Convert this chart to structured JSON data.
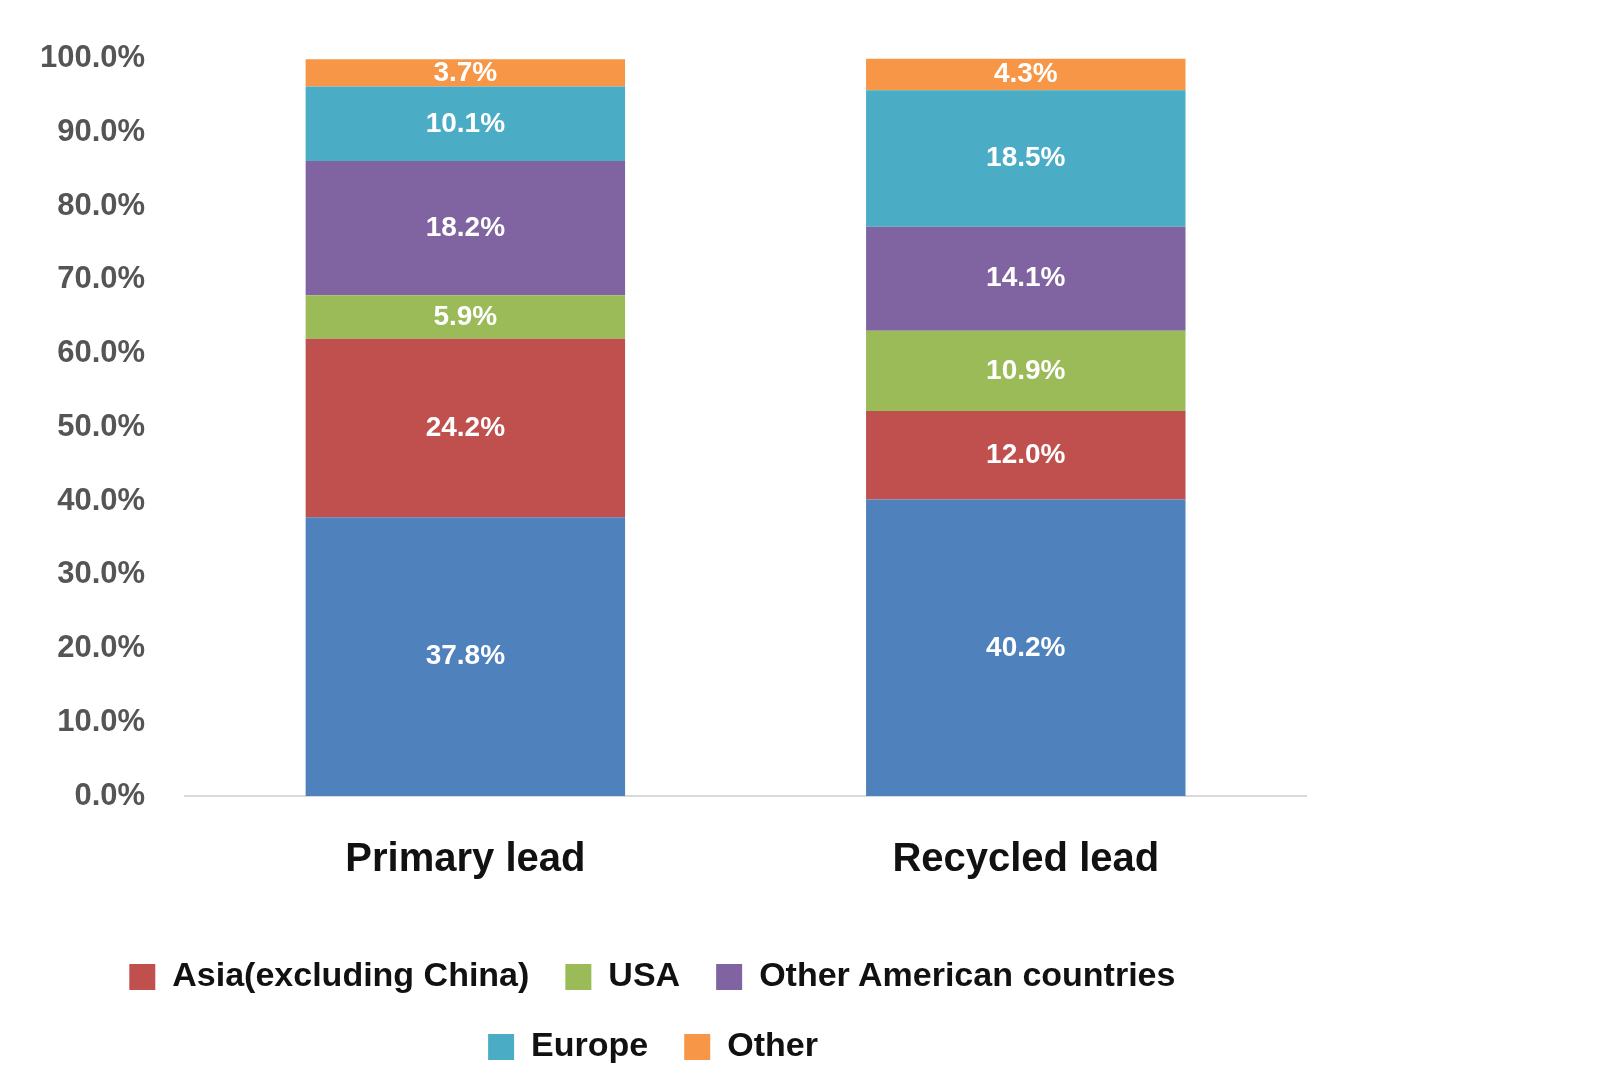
{
  "chart_data": {
    "type": "bar",
    "stacked": true,
    "categories": [
      "Primary lead",
      "Recycled lead"
    ],
    "series": [
      {
        "color": "#4f81bd",
        "values": [
          37.8,
          40.2
        ],
        "value_labels": [
          "37.8%",
          "40.2%"
        ]
      },
      {
        "name": "Asia(excluding China)",
        "color": "#c0504d",
        "values": [
          24.2,
          12.0
        ],
        "value_labels": [
          "24.2%",
          "12.0%"
        ]
      },
      {
        "name": "USA",
        "color": "#9bbb59",
        "values": [
          5.9,
          10.9
        ],
        "value_labels": [
          "5.9%",
          "10.9%"
        ]
      },
      {
        "name": "Other American countries",
        "color": "#8064a2",
        "values": [
          18.2,
          14.1
        ],
        "value_labels": [
          "18.2%",
          "14.1%"
        ]
      },
      {
        "name": "Europe",
        "color": "#4bacc6",
        "values": [
          10.1,
          18.5
        ],
        "value_labels": [
          "10.1%",
          "18.5%"
        ]
      },
      {
        "name": "Other",
        "color": "#f79646",
        "values": [
          3.7,
          4.3
        ],
        "value_labels": [
          "3.7%",
          "4.3%"
        ]
      }
    ],
    "ylim": [
      0,
      100
    ],
    "yticks": [
      {
        "value": 0,
        "label": "0.0%"
      },
      {
        "value": 10,
        "label": "10.0%"
      },
      {
        "value": 20,
        "label": "20.0%"
      },
      {
        "value": 30,
        "label": "30.0%"
      },
      {
        "value": 40,
        "label": "40.0%"
      },
      {
        "value": 50,
        "label": "50.0%"
      },
      {
        "value": 60,
        "label": "60.0%"
      },
      {
        "value": 70,
        "label": "70.0%"
      },
      {
        "value": 80,
        "label": "80.0%"
      },
      {
        "value": 90,
        "label": "90.0%"
      },
      {
        "value": 100,
        "label": "100.0%"
      }
    ],
    "legend": "bottom"
  }
}
